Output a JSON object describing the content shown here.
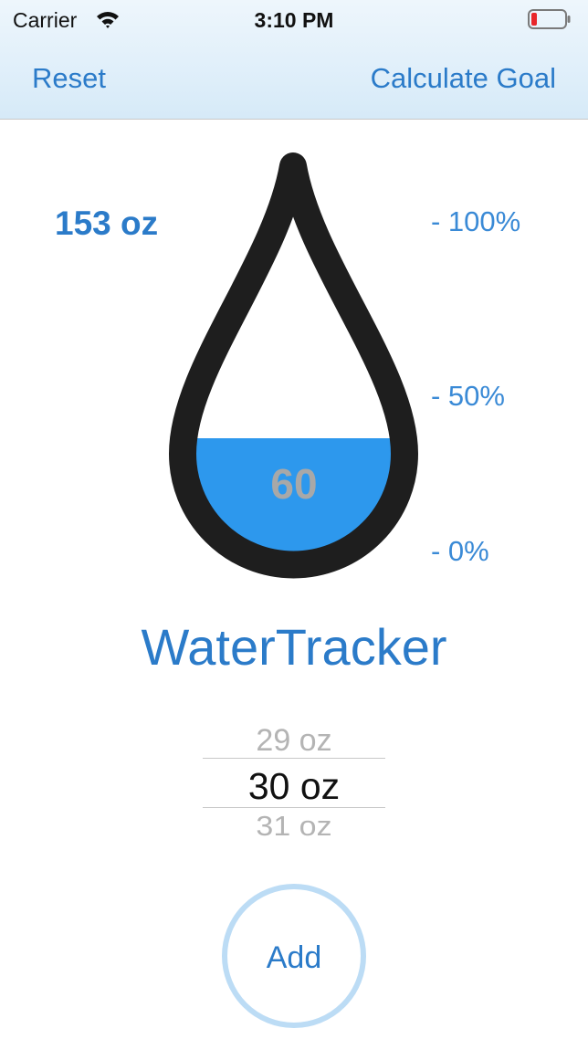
{
  "status_bar": {
    "carrier": "Carrier",
    "time": "3:10 PM",
    "wifi_icon": "wifi-icon",
    "battery_icon": "battery-low-icon",
    "battery_color": "#e8262b"
  },
  "nav": {
    "reset_label": "Reset",
    "calculate_goal_label": "Calculate Goal"
  },
  "tracker": {
    "goal": "153 oz",
    "current_value": "60",
    "scale_labels": {
      "top": "- 100%",
      "middle": "- 50%",
      "bottom": "- 0%"
    },
    "water_color": "#2d98ed",
    "drop_outline_color": "#1e1e1e"
  },
  "app_title": "WaterTracker",
  "picker": {
    "previous": "29 oz",
    "selected": "30 oz",
    "next": "31 oz"
  },
  "add_button": {
    "label": "Add"
  },
  "colors": {
    "accent": "#2b7bc9",
    "nav_background": "#d6eaf8",
    "add_ring": "#bcdcf5"
  }
}
